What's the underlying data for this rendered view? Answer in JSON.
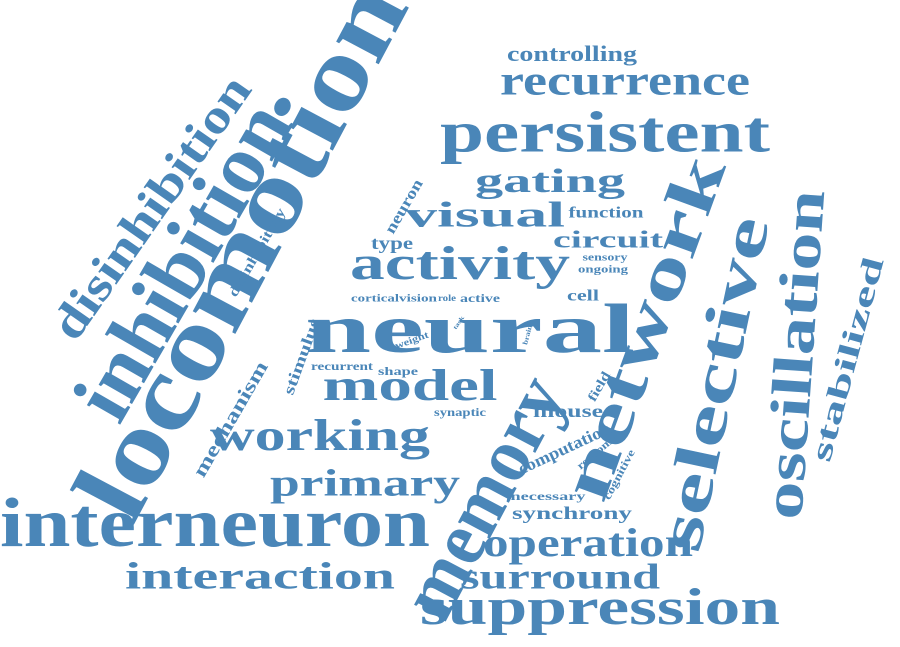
{
  "cloud": {
    "color": "#4a86b8",
    "words": [
      "locomotion",
      "inhibition",
      "interneuron",
      "memory",
      "neural",
      "network",
      "selective",
      "oscillation",
      "persistent",
      "suppression",
      "disinhibition",
      "activity",
      "working",
      "model",
      "operation",
      "recurrence",
      "primary",
      "interaction",
      "surround",
      "visual",
      "gating",
      "stabilized",
      "circuit",
      "controlling",
      "mechanism",
      "synchrony",
      "mouse",
      "computation",
      "stimulus",
      "disinhibitory",
      "neuron",
      "type",
      "function",
      "cell",
      "necessary",
      "cognitive",
      "response",
      "field",
      "shape",
      "recurrent",
      "synaptic",
      "weight",
      "cortical",
      "vision",
      "role",
      "active",
      "sensory",
      "ongoing",
      "brain",
      "task"
    ]
  }
}
